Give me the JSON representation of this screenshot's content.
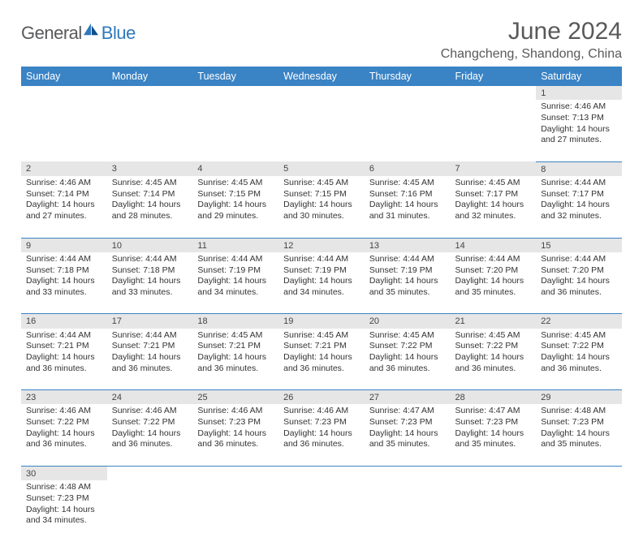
{
  "brand": {
    "part1": "General",
    "part2": "Blue"
  },
  "title": "June 2024",
  "location": "Changcheng, Shandong, China",
  "colors": {
    "header_bg": "#3a83c5",
    "header_fg": "#ffffff",
    "daynum_bg": "#e6e6e6",
    "row_border": "#3a83c5",
    "title_color": "#595959",
    "logo_gray": "#58595b",
    "logo_blue": "#2f78bd"
  },
  "day_headers": [
    "Sunday",
    "Monday",
    "Tuesday",
    "Wednesday",
    "Thursday",
    "Friday",
    "Saturday"
  ],
  "weeks": [
    [
      null,
      null,
      null,
      null,
      null,
      null,
      {
        "n": "1",
        "sr": "4:46 AM",
        "ss": "7:13 PM",
        "dl": "14 hours and 27 minutes."
      }
    ],
    [
      {
        "n": "2",
        "sr": "4:46 AM",
        "ss": "7:14 PM",
        "dl": "14 hours and 27 minutes."
      },
      {
        "n": "3",
        "sr": "4:45 AM",
        "ss": "7:14 PM",
        "dl": "14 hours and 28 minutes."
      },
      {
        "n": "4",
        "sr": "4:45 AM",
        "ss": "7:15 PM",
        "dl": "14 hours and 29 minutes."
      },
      {
        "n": "5",
        "sr": "4:45 AM",
        "ss": "7:15 PM",
        "dl": "14 hours and 30 minutes."
      },
      {
        "n": "6",
        "sr": "4:45 AM",
        "ss": "7:16 PM",
        "dl": "14 hours and 31 minutes."
      },
      {
        "n": "7",
        "sr": "4:45 AM",
        "ss": "7:17 PM",
        "dl": "14 hours and 32 minutes."
      },
      {
        "n": "8",
        "sr": "4:44 AM",
        "ss": "7:17 PM",
        "dl": "14 hours and 32 minutes."
      }
    ],
    [
      {
        "n": "9",
        "sr": "4:44 AM",
        "ss": "7:18 PM",
        "dl": "14 hours and 33 minutes."
      },
      {
        "n": "10",
        "sr": "4:44 AM",
        "ss": "7:18 PM",
        "dl": "14 hours and 33 minutes."
      },
      {
        "n": "11",
        "sr": "4:44 AM",
        "ss": "7:19 PM",
        "dl": "14 hours and 34 minutes."
      },
      {
        "n": "12",
        "sr": "4:44 AM",
        "ss": "7:19 PM",
        "dl": "14 hours and 34 minutes."
      },
      {
        "n": "13",
        "sr": "4:44 AM",
        "ss": "7:19 PM",
        "dl": "14 hours and 35 minutes."
      },
      {
        "n": "14",
        "sr": "4:44 AM",
        "ss": "7:20 PM",
        "dl": "14 hours and 35 minutes."
      },
      {
        "n": "15",
        "sr": "4:44 AM",
        "ss": "7:20 PM",
        "dl": "14 hours and 36 minutes."
      }
    ],
    [
      {
        "n": "16",
        "sr": "4:44 AM",
        "ss": "7:21 PM",
        "dl": "14 hours and 36 minutes."
      },
      {
        "n": "17",
        "sr": "4:44 AM",
        "ss": "7:21 PM",
        "dl": "14 hours and 36 minutes."
      },
      {
        "n": "18",
        "sr": "4:45 AM",
        "ss": "7:21 PM",
        "dl": "14 hours and 36 minutes."
      },
      {
        "n": "19",
        "sr": "4:45 AM",
        "ss": "7:21 PM",
        "dl": "14 hours and 36 minutes."
      },
      {
        "n": "20",
        "sr": "4:45 AM",
        "ss": "7:22 PM",
        "dl": "14 hours and 36 minutes."
      },
      {
        "n": "21",
        "sr": "4:45 AM",
        "ss": "7:22 PM",
        "dl": "14 hours and 36 minutes."
      },
      {
        "n": "22",
        "sr": "4:45 AM",
        "ss": "7:22 PM",
        "dl": "14 hours and 36 minutes."
      }
    ],
    [
      {
        "n": "23",
        "sr": "4:46 AM",
        "ss": "7:22 PM",
        "dl": "14 hours and 36 minutes."
      },
      {
        "n": "24",
        "sr": "4:46 AM",
        "ss": "7:22 PM",
        "dl": "14 hours and 36 minutes."
      },
      {
        "n": "25",
        "sr": "4:46 AM",
        "ss": "7:23 PM",
        "dl": "14 hours and 36 minutes."
      },
      {
        "n": "26",
        "sr": "4:46 AM",
        "ss": "7:23 PM",
        "dl": "14 hours and 36 minutes."
      },
      {
        "n": "27",
        "sr": "4:47 AM",
        "ss": "7:23 PM",
        "dl": "14 hours and 35 minutes."
      },
      {
        "n": "28",
        "sr": "4:47 AM",
        "ss": "7:23 PM",
        "dl": "14 hours and 35 minutes."
      },
      {
        "n": "29",
        "sr": "4:48 AM",
        "ss": "7:23 PM",
        "dl": "14 hours and 35 minutes."
      }
    ],
    [
      {
        "n": "30",
        "sr": "4:48 AM",
        "ss": "7:23 PM",
        "dl": "14 hours and 34 minutes."
      },
      null,
      null,
      null,
      null,
      null,
      null
    ]
  ],
  "labels": {
    "sunrise": "Sunrise:",
    "sunset": "Sunset:",
    "daylight": "Daylight:"
  }
}
